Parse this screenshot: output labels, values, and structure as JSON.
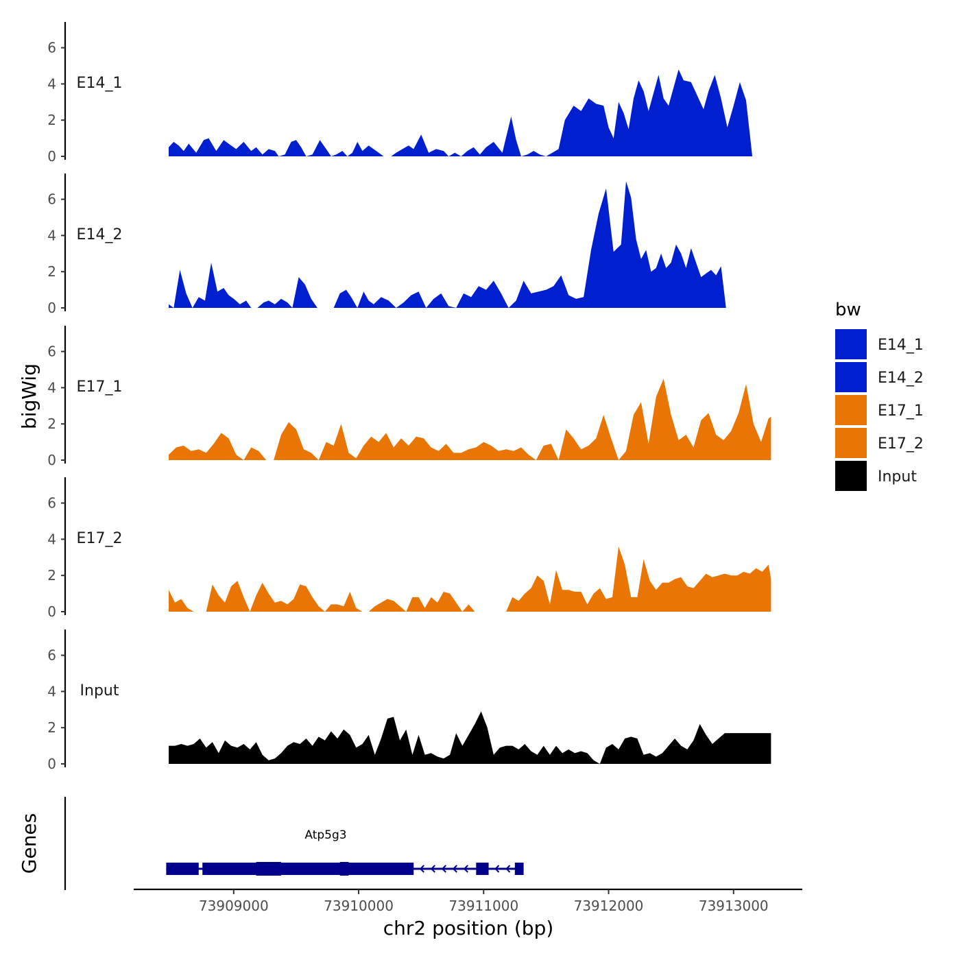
{
  "chart_data": {
    "type": "area",
    "title": "",
    "xlabel": "chr2 position (bp)",
    "ylabel": "bigWig",
    "genes_label": "Genes",
    "xlim": [
      73908200,
      73913550
    ],
    "ylim": [
      0,
      7.5
    ],
    "x_ticks": [
      73909000,
      73910000,
      73911000,
      73912000,
      73913000
    ],
    "x_tick_labels": [
      "73909000",
      "73910000",
      "73911000",
      "73912000",
      "73913000"
    ],
    "y_ticks": [
      0,
      2,
      4,
      6
    ],
    "y_tick_labels": [
      "0",
      "2",
      "4",
      "6"
    ],
    "legend": {
      "title": "bw",
      "entries": [
        {
          "label": "E14_1",
          "color": "#0020CF"
        },
        {
          "label": "E14_2",
          "color": "#0020CF"
        },
        {
          "label": "E17_1",
          "color": "#E87504"
        },
        {
          "label": "E17_2",
          "color": "#E87504"
        },
        {
          "label": "Input",
          "color": "#000000"
        }
      ]
    },
    "series": [
      {
        "name": "E14_1",
        "color": "#0020CF",
        "x": [
          73908480,
          73908520,
          73908560,
          73908600,
          73908640,
          73908700,
          73908760,
          73908800,
          73908860,
          73908920,
          73908980,
          73909020,
          73909080,
          73909140,
          73909180,
          73909230,
          73909280,
          73909330,
          73909360,
          73909410,
          73909460,
          73909500,
          73909540,
          73909580,
          73909630,
          73909690,
          73909740,
          73909780,
          73909820,
          73909870,
          73909910,
          73909950,
          73909990,
          73910030,
          73910080,
          73910140,
          73910200,
          73910260,
          73910300,
          73910350,
          73910400,
          73910440,
          73910500,
          73910560,
          73910620,
          73910680,
          73910720,
          73910770,
          73910820,
          73910870,
          73910920,
          73910970,
          73911020,
          73911080,
          73911150,
          73911220,
          73911260,
          73911300,
          73911350,
          73911400,
          73911450,
          73911500,
          73911550,
          73911600,
          73911650,
          73911720,
          73911780,
          73911840,
          73911900,
          73911960,
          73912000,
          73912040,
          73912080,
          73912120,
          73912160,
          73912200,
          73912240,
          73912280,
          73912320,
          73912360,
          73912400,
          73912440,
          73912480,
          73912520,
          73912560,
          73912600,
          73912660,
          73912720,
          73912760,
          73912800,
          73912850,
          73912900,
          73912950,
          73913000,
          73913050,
          73913100,
          73913150,
          73913200,
          73913250,
          73913300
        ],
        "y": [
          0.5,
          0.8,
          0.6,
          0.3,
          0.7,
          0.2,
          0.9,
          1.0,
          0.3,
          0.9,
          0.6,
          0.4,
          0.8,
          0.3,
          0.5,
          0.1,
          0.4,
          0.3,
          0.0,
          0.1,
          0.8,
          0.9,
          0.5,
          0.0,
          0.1,
          0.9,
          0.4,
          0.0,
          0.1,
          0.3,
          0.0,
          0.2,
          0.8,
          0.3,
          0.6,
          0.3,
          0.0,
          0.0,
          0.2,
          0.4,
          0.6,
          0.4,
          1.2,
          0.2,
          0.4,
          0.3,
          0.0,
          0.2,
          0.0,
          0.3,
          0.5,
          0.1,
          0.5,
          0.8,
          0.2,
          2.2,
          0.9,
          0.0,
          0.1,
          0.3,
          0.1,
          0.0,
          0.2,
          0.4,
          2.0,
          2.8,
          2.5,
          3.2,
          2.9,
          2.8,
          1.6,
          1.0,
          3.0,
          2.4,
          1.5,
          3.2,
          4.2,
          3.6,
          2.5,
          3.5,
          4.5,
          3.2,
          2.8,
          3.8,
          4.8,
          4.2,
          4.1,
          3.2,
          2.6,
          3.6,
          4.5,
          3.2,
          1.6,
          2.8,
          4.1,
          3.1,
          0.0,
          0.0,
          0.0,
          0.0
        ]
      },
      {
        "name": "E14_2",
        "color": "#0020CF",
        "x": [
          73908480,
          73908520,
          73908570,
          73908620,
          73908670,
          73908720,
          73908770,
          73908820,
          73908870,
          73908920,
          73908960,
          73909000,
          73909050,
          73909100,
          73909140,
          73909190,
          73909240,
          73909280,
          73909330,
          73909380,
          73909430,
          73909470,
          73909520,
          73909570,
          73909620,
          73909670,
          73909720,
          73909760,
          73909800,
          73909850,
          73909900,
          73909940,
          73909990,
          73910040,
          73910080,
          73910120,
          73910180,
          73910240,
          73910300,
          73910360,
          73910420,
          73910480,
          73910540,
          73910600,
          73910660,
          73910720,
          73910780,
          73910840,
          73910900,
          73910960,
          73911020,
          73911080,
          73911140,
          73911200,
          73911260,
          73911320,
          73911380,
          73911440,
          73911500,
          73911560,
          73911620,
          73911680,
          73911740,
          73911800,
          73911860,
          73911920,
          73911980,
          73912040,
          73912100,
          73912140,
          73912180,
          73912220,
          73912260,
          73912300,
          73912340,
          73912380,
          73912420,
          73912460,
          73912500,
          73912540,
          73912580,
          73912620,
          73912660,
          73912700,
          73912740,
          73912780,
          73912820,
          73912860,
          73912900,
          73912940,
          73912980,
          73913020,
          73913060,
          73913100,
          73913140,
          73913180,
          73913220,
          73913260,
          73913300
        ],
        "y": [
          0.2,
          0.0,
          2.1,
          0.8,
          0.0,
          0.6,
          0.4,
          2.5,
          0.9,
          1.1,
          0.7,
          0.5,
          0.2,
          0.4,
          0.0,
          0.0,
          0.3,
          0.4,
          0.2,
          0.5,
          0.3,
          0.0,
          1.7,
          1.3,
          0.5,
          0.0,
          0.0,
          0.0,
          0.0,
          0.8,
          1.0,
          0.6,
          0.0,
          0.9,
          0.4,
          0.2,
          0.6,
          0.4,
          0.0,
          0.3,
          0.7,
          0.9,
          0.0,
          0.5,
          0.8,
          0.1,
          0.0,
          0.8,
          0.6,
          1.2,
          1.0,
          1.5,
          0.8,
          0.0,
          0.4,
          1.5,
          0.8,
          0.9,
          1.0,
          1.2,
          1.8,
          0.7,
          0.5,
          0.6,
          3.2,
          5.2,
          6.6,
          3.1,
          3.5,
          7.0,
          6.1,
          3.8,
          2.7,
          3.2,
          2.0,
          2.2,
          3.0,
          2.2,
          2.5,
          3.5,
          3.0,
          2.2,
          3.3,
          2.5,
          1.7,
          1.9,
          2.1,
          1.8,
          2.3,
          0.0,
          0.0,
          0.0,
          0.0,
          0.0,
          0.0,
          0.0,
          0.0,
          0.0,
          0.0
        ]
      },
      {
        "name": "E17_1",
        "color": "#E87504",
        "x": [
          73908480,
          73908540,
          73908600,
          73908660,
          73908720,
          73908780,
          73908840,
          73908900,
          73908960,
          73909020,
          73909080,
          73909140,
          73909200,
          73909260,
          73909320,
          73909380,
          73909440,
          73909500,
          73909560,
          73909620,
          73909680,
          73909740,
          73909800,
          73909860,
          73909920,
          73909980,
          73910040,
          73910100,
          73910160,
          73910220,
          73910280,
          73910340,
          73910400,
          73910460,
          73910520,
          73910580,
          73910640,
          73910700,
          73910760,
          73910820,
          73910880,
          73910940,
          73911000,
          73911060,
          73911120,
          73911180,
          73911240,
          73911300,
          73911360,
          73911420,
          73911480,
          73911540,
          73911600,
          73911660,
          73911720,
          73911780,
          73911840,
          73911900,
          73911960,
          73912020,
          73912080,
          73912140,
          73912200,
          73912260,
          73912320,
          73912380,
          73912440,
          73912500,
          73912560,
          73912620,
          73912680,
          73912740,
          73912800,
          73912860,
          73912920,
          73912980,
          73913040,
          73913100,
          73913160,
          73913220,
          73913280,
          73913300
        ],
        "y": [
          0.3,
          0.7,
          0.8,
          0.5,
          0.6,
          0.4,
          0.9,
          1.5,
          1.2,
          0.3,
          0.0,
          0.7,
          0.5,
          0.0,
          0.0,
          1.4,
          2.1,
          1.7,
          0.6,
          0.4,
          0.0,
          1.0,
          0.8,
          2.0,
          0.4,
          0.1,
          0.8,
          1.3,
          1.0,
          1.5,
          0.7,
          1.2,
          0.8,
          1.3,
          1.2,
          0.7,
          0.5,
          0.9,
          0.4,
          0.4,
          0.6,
          0.7,
          1.0,
          0.8,
          0.5,
          0.6,
          0.5,
          0.7,
          0.3,
          0.0,
          0.8,
          0.9,
          0.0,
          1.7,
          1.2,
          0.6,
          0.8,
          1.2,
          2.5,
          1.2,
          0.0,
          0.5,
          2.5,
          3.2,
          0.9,
          3.5,
          4.5,
          2.5,
          1.1,
          1.4,
          0.7,
          2.2,
          2.6,
          1.4,
          1.1,
          1.6,
          2.6,
          4.2,
          2.0,
          1.0,
          2.3,
          2.4
        ]
      },
      {
        "name": "E17_2",
        "color": "#E87504",
        "x": [
          73908480,
          73908530,
          73908580,
          73908630,
          73908680,
          73908730,
          73908780,
          73908830,
          73908880,
          73908930,
          73908980,
          73909030,
          73909080,
          73909130,
          73909180,
          73909230,
          73909280,
          73909330,
          73909380,
          73909430,
          73909480,
          73909530,
          73909580,
          73909630,
          73909680,
          73909730,
          73909780,
          73909830,
          73909880,
          73909930,
          73909980,
          73910030,
          73910080,
          73910130,
          73910180,
          73910230,
          73910280,
          73910330,
          73910380,
          73910430,
          73910480,
          73910530,
          73910580,
          73910630,
          73910680,
          73910730,
          73910780,
          73910830,
          73910880,
          73910930,
          73910980,
          73911030,
          73911080,
          73911130,
          73911180,
          73911230,
          73911280,
          73911330,
          73911380,
          73911430,
          73911480,
          73911530,
          73911580,
          73911630,
          73911680,
          73911730,
          73911780,
          73911830,
          73911880,
          73911930,
          73911980,
          73912030,
          73912080,
          73912130,
          73912180,
          73912230,
          73912280,
          73912330,
          73912380,
          73912430,
          73912480,
          73912530,
          73912580,
          73912630,
          73912680,
          73912730,
          73912780,
          73912830,
          73912880,
          73912930,
          73912980,
          73913030,
          73913080,
          73913130,
          73913180,
          73913230,
          73913280,
          73913300
        ],
        "y": [
          1.2,
          0.5,
          0.7,
          0.2,
          0.0,
          0.0,
          0.0,
          1.5,
          0.9,
          0.5,
          1.4,
          1.7,
          0.8,
          0.0,
          0.9,
          1.6,
          1.0,
          0.5,
          0.6,
          0.4,
          0.7,
          1.5,
          1.4,
          0.8,
          0.3,
          0.0,
          0.4,
          0.4,
          0.3,
          1.1,
          0.2,
          0.0,
          0.0,
          0.3,
          0.5,
          0.7,
          0.6,
          0.3,
          0.0,
          0.8,
          0.8,
          0.2,
          0.8,
          0.5,
          1.1,
          1.0,
          0.5,
          0.0,
          0.4,
          0.0,
          0.0,
          0.0,
          0.0,
          0.0,
          0.0,
          0.8,
          0.6,
          1.0,
          1.3,
          2.0,
          1.7,
          0.4,
          2.3,
          1.2,
          1.2,
          1.1,
          1.1,
          0.4,
          1.0,
          1.3,
          0.7,
          0.8,
          3.6,
          2.6,
          0.8,
          0.8,
          2.9,
          1.7,
          1.2,
          1.6,
          1.6,
          1.8,
          1.9,
          1.4,
          1.3,
          1.7,
          2.1,
          1.9,
          2.0,
          2.1,
          2.0,
          2.0,
          2.2,
          2.1,
          2.4,
          2.2,
          2.6,
          1.8
        ]
      },
      {
        "name": "Input",
        "color": "#000000",
        "x": [
          73908480,
          73908530,
          73908580,
          73908630,
          73908680,
          73908730,
          73908780,
          73908830,
          73908880,
          73908930,
          73908980,
          73909030,
          73909080,
          73909130,
          73909180,
          73909230,
          73909280,
          73909330,
          73909380,
          73909430,
          73909480,
          73909530,
          73909580,
          73909630,
          73909680,
          73909730,
          73909780,
          73909830,
          73909880,
          73909930,
          73909980,
          73910030,
          73910080,
          73910130,
          73910180,
          73910230,
          73910280,
          73910330,
          73910380,
          73910430,
          73910480,
          73910530,
          73910580,
          73910630,
          73910680,
          73910730,
          73910780,
          73910830,
          73910880,
          73910930,
          73910980,
          73911030,
          73911080,
          73911130,
          73911180,
          73911230,
          73911280,
          73911330,
          73911380,
          73911430,
          73911480,
          73911530,
          73911580,
          73911630,
          73911680,
          73911730,
          73911780,
          73911830,
          73911880,
          73911930,
          73911980,
          73912030,
          73912080,
          73912130,
          73912180,
          73912230,
          73912280,
          73912330,
          73912380,
          73912430,
          73912480,
          73912530,
          73912580,
          73912630,
          73912680,
          73912730,
          73912780,
          73912830,
          73912880,
          73912930,
          73912980,
          73913030,
          73913080,
          73913130,
          73913180,
          73913230,
          73913280,
          73913300
        ],
        "y": [
          1.0,
          1.0,
          1.1,
          1.0,
          1.1,
          1.4,
          0.9,
          1.2,
          0.6,
          1.3,
          1.0,
          0.9,
          1.1,
          0.8,
          1.2,
          0.5,
          0.2,
          0.3,
          0.6,
          1.0,
          1.2,
          1.1,
          1.4,
          1.0,
          1.5,
          1.3,
          1.8,
          1.4,
          1.9,
          1.6,
          0.9,
          1.1,
          1.6,
          0.5,
          1.4,
          2.5,
          2.6,
          1.3,
          1.9,
          0.5,
          1.6,
          0.5,
          0.6,
          0.4,
          0.3,
          0.5,
          1.7,
          1.0,
          1.6,
          2.2,
          2.9,
          2.0,
          0.5,
          0.9,
          1.0,
          1.0,
          0.8,
          1.1,
          0.7,
          0.5,
          1.0,
          0.5,
          1.0,
          0.6,
          0.8,
          0.6,
          0.7,
          0.6,
          0.2,
          0.0,
          0.9,
          1.1,
          0.8,
          1.4,
          1.5,
          1.4,
          0.5,
          0.6,
          0.4,
          0.6,
          1.0,
          1.4,
          1.0,
          0.8,
          1.3,
          2.2,
          1.6,
          1.1,
          1.4,
          1.7,
          1.7,
          1.7,
          1.7,
          1.7,
          1.7,
          1.7,
          1.7,
          1.7
        ]
      }
    ],
    "genes": [
      {
        "name": "Atp5g3",
        "strand": "-",
        "start": 73908460,
        "end": 73911320,
        "exons": [
          [
            73908460,
            73908720
          ],
          [
            73908750,
            73910440
          ],
          [
            73910940,
            73911040
          ],
          [
            73911250,
            73911320
          ]
        ],
        "thick_blocks": [
          [
            73909180,
            73909380
          ],
          [
            73909850,
            73909920
          ]
        ],
        "color": "#00008B"
      }
    ]
  }
}
